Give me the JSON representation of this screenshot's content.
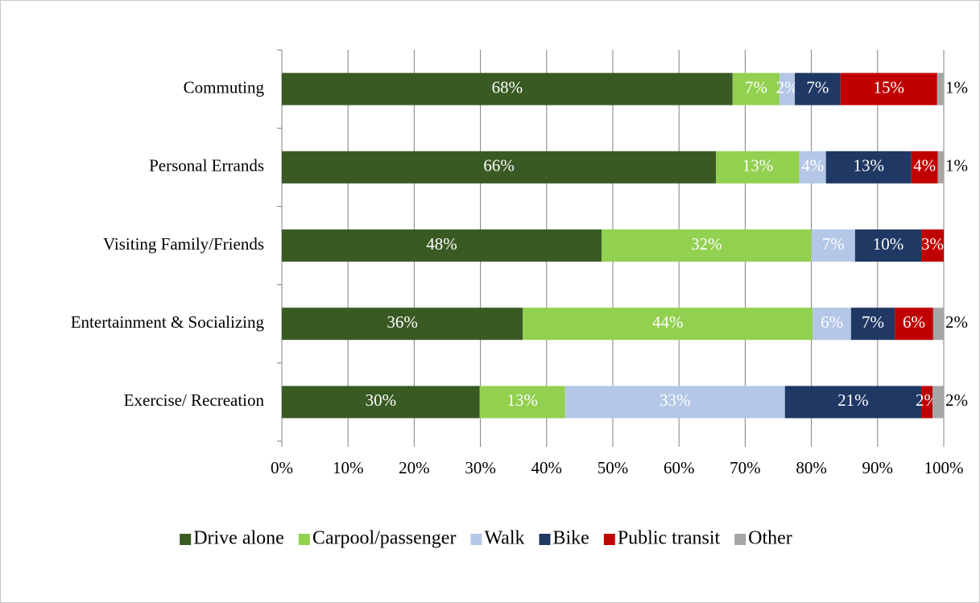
{
  "chart_data": {
    "type": "stacked_barh",
    "categories": [
      "Commuting",
      "Personal Errands",
      "Visiting Family/Friends",
      "Entertainment & Socializing",
      "Exercise/ Recreation"
    ],
    "series": [
      {
        "name": "Drive alone",
        "color": "#3a5a24",
        "values": [
          68.1,
          65.6,
          48.3,
          36.4,
          29.9
        ],
        "value_labels": [
          "68%",
          "66%",
          "48%",
          "36%",
          "30%"
        ]
      },
      {
        "name": "Carpool/passenger",
        "color": "#92d050",
        "values": [
          7.1,
          12.6,
          31.7,
          43.8,
          12.9
        ],
        "value_labels": [
          "7%",
          "13%",
          "32%",
          "44%",
          "13%"
        ]
      },
      {
        "name": "Walk",
        "color": "#b4c7e7",
        "values": [
          2.3,
          4.0,
          6.6,
          5.8,
          33.2
        ],
        "value_labels": [
          "2%",
          "4%",
          "7%",
          "6%",
          "33%"
        ]
      },
      {
        "name": "Bike",
        "color": "#203864",
        "values": [
          6.9,
          12.9,
          10.0,
          6.6,
          20.6
        ],
        "value_labels": [
          "7%",
          "13%",
          "10%",
          "7%",
          "21%"
        ]
      },
      {
        "name": "Public transit",
        "color": "#c00000",
        "values": [
          14.6,
          4.0,
          3.4,
          5.8,
          1.7
        ],
        "value_labels": [
          "15%",
          "4%",
          "3%",
          "6%",
          "2%"
        ]
      },
      {
        "name": "Other",
        "color": "#a6a6a6",
        "values": [
          1.0,
          0.9,
          0,
          1.6,
          1.7
        ],
        "value_labels": [
          "1%",
          "1%",
          null,
          "2%",
          "2%"
        ]
      }
    ],
    "xlim": [
      0,
      100
    ],
    "xticks": [
      {
        "value": 0,
        "label": "0%"
      },
      {
        "value": 10,
        "label": "10%"
      },
      {
        "value": 20,
        "label": "20%"
      },
      {
        "value": 30,
        "label": "30%"
      },
      {
        "value": 40,
        "label": "40%"
      },
      {
        "value": 50,
        "label": "50%"
      },
      {
        "value": 60,
        "label": "60%"
      },
      {
        "value": 70,
        "label": "70%"
      },
      {
        "value": 80,
        "label": "80%"
      },
      {
        "value": 90,
        "label": "90%"
      },
      {
        "value": 100,
        "label": "100%"
      }
    ],
    "grid": true,
    "legend": "bottom"
  }
}
